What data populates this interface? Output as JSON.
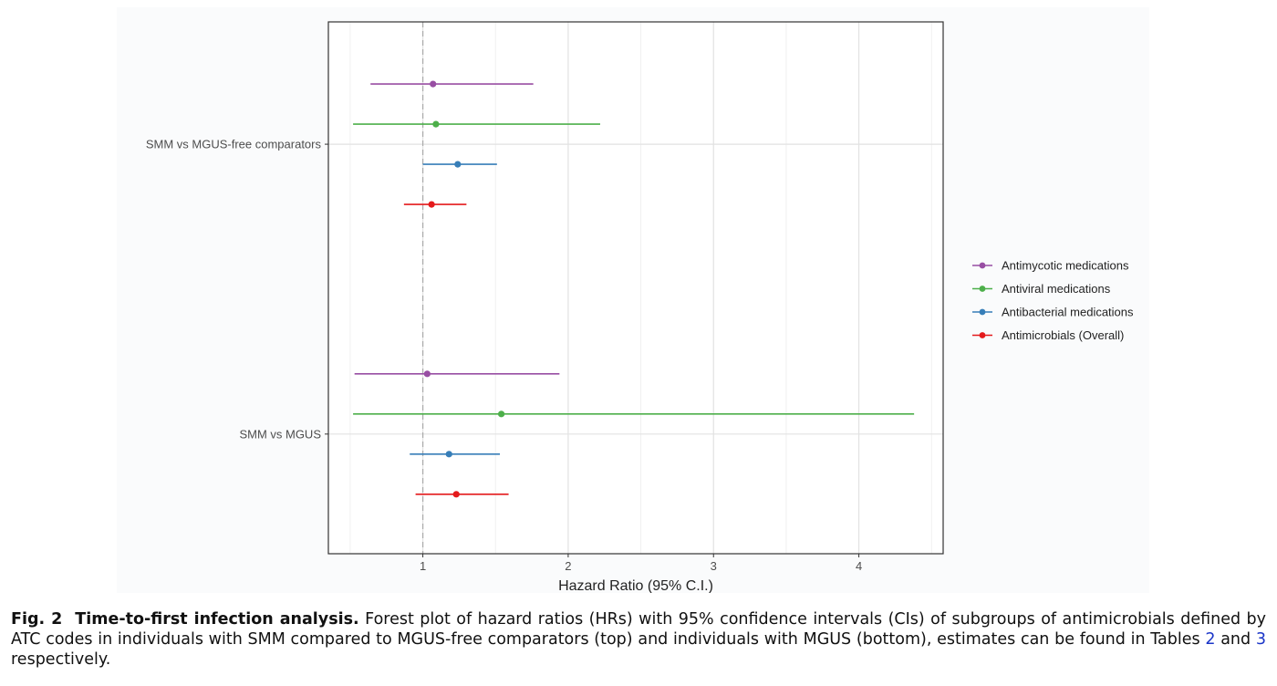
{
  "chart_data": {
    "type": "forest",
    "xlabel": "Hazard Ratio (95% C.I.)",
    "xlim": [
      0.35,
      4.58
    ],
    "x_ticks": [
      1,
      2,
      3,
      4
    ],
    "x_tick_labels": [
      "1",
      "2",
      "3",
      "4"
    ],
    "reference_line": 1,
    "grid": true,
    "legend_position": "right",
    "categories": [
      "SMM vs MGUS-free comparators",
      "SMM vs MGUS"
    ],
    "series": [
      {
        "name": "Antimycotic medications",
        "color": "#984ea3",
        "hr": [
          1.07,
          1.03
        ],
        "lower": [
          0.64,
          0.53
        ],
        "upper": [
          1.76,
          1.94
        ]
      },
      {
        "name": "Antiviral medications",
        "color": "#4daf4a",
        "hr": [
          1.09,
          1.54
        ],
        "lower": [
          0.52,
          0.52
        ],
        "upper": [
          2.22,
          4.38
        ]
      },
      {
        "name": "Antibacterial medications",
        "color": "#377eb8",
        "hr": [
          1.24,
          1.18
        ],
        "lower": [
          1.0,
          0.91
        ],
        "upper": [
          1.51,
          1.53
        ]
      },
      {
        "name": "Antimicrobials (Overall)",
        "color": "#e41a1c",
        "hr": [
          1.06,
          1.23
        ],
        "lower": [
          0.87,
          0.95
        ],
        "upper": [
          1.3,
          1.59
        ]
      }
    ]
  },
  "caption": {
    "label": "Fig. 2",
    "title": "Time-to-first infection analysis.",
    "text_before_link1": " Forest plot of hazard ratios (HRs) with 95% confidence intervals (CIs) of subgroups of antimicrobials defined by ATC codes in individuals with SMM compared to MGUS-free comparators (top) and individuals with MGUS (bottom), estimates can be found in Tables ",
    "link1": "2",
    "text_between": " and ",
    "link2": "3",
    "text_after": " respectively."
  }
}
